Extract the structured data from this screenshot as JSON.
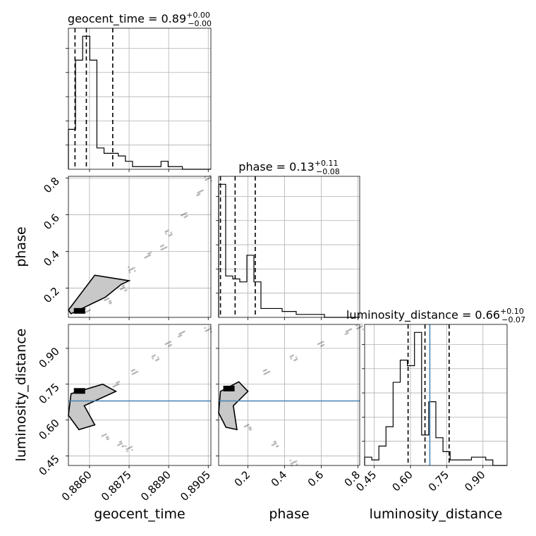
{
  "chart_data": {
    "type": "corner",
    "parameters": [
      "geocent_time",
      "phase",
      "luminosity_distance"
    ],
    "truth": {
      "luminosity_distance": 0.68
    },
    "axes": {
      "geocent_time": {
        "range": [
          0.8852,
          0.8906
        ],
        "ticks": [
          0.886,
          0.8875,
          0.889,
          0.8905
        ],
        "tick_labels": [
          "0.8860",
          "0.8875",
          "0.8890",
          "0.8905"
        ]
      },
      "phase": {
        "range": [
          0.04,
          0.81
        ],
        "ticks": [
          0.2,
          0.4,
          0.6,
          0.8
        ],
        "tick_labels": [
          "0.2",
          "0.4",
          "0.6",
          "0.8"
        ]
      },
      "luminosity_distance": {
        "range": [
          0.41,
          1.0
        ],
        "ticks": [
          0.45,
          0.6,
          0.75,
          0.9
        ],
        "tick_labels": [
          "0.45",
          "0.60",
          "0.75",
          "0.90"
        ]
      }
    },
    "titles": [
      {
        "param": "geocent_time",
        "label": "geocent_time",
        "median": "0.89",
        "upper": "+0.00",
        "lower": "−0.00",
        "quantiles": [
          0.88545,
          0.88588,
          0.88688
        ]
      },
      {
        "param": "phase",
        "label": "phase",
        "median": "0.13",
        "upper": "+0.11",
        "lower": "−0.08",
        "quantiles": [
          0.05,
          0.13,
          0.24
        ]
      },
      {
        "param": "luminosity_distance",
        "label": "luminosity_distance",
        "median": "0.66",
        "upper": "+0.10",
        "lower": "−0.07",
        "quantiles": [
          0.59,
          0.66,
          0.76
        ]
      }
    ],
    "histograms": {
      "geocent_time": {
        "edges_range": [
          0.8852,
          0.8906
        ],
        "bins": 20,
        "counts": [
          15,
          41,
          50,
          41,
          8,
          6,
          6,
          5,
          3,
          1,
          1,
          1,
          1,
          3,
          1,
          1,
          0,
          0,
          0,
          0
        ]
      },
      "phase": {
        "edges_range": [
          0.04,
          0.81
        ],
        "bins": 20,
        "counts": [
          45,
          14,
          13,
          12,
          21,
          12,
          3,
          3,
          3,
          2,
          2,
          1,
          1,
          1,
          1,
          0,
          0,
          0,
          0,
          0
        ]
      },
      "luminosity_distance": {
        "edges_range": [
          0.41,
          1.0
        ],
        "bins": 20,
        "counts": [
          3,
          2,
          7,
          14,
          30,
          38,
          36,
          48,
          11,
          23,
          10,
          5,
          2,
          2,
          2,
          3,
          3,
          2,
          0,
          0
        ]
      }
    },
    "scatter_paths": {
      "geocent_time__phase": [
        [
          0.8859,
          0.08
        ],
        [
          0.8867,
          0.13
        ],
        [
          0.8873,
          0.2
        ],
        [
          0.8876,
          0.3
        ],
        [
          0.8882,
          0.38
        ],
        [
          0.8888,
          0.42
        ],
        [
          0.889,
          0.5
        ],
        [
          0.8896,
          0.6
        ],
        [
          0.8902,
          0.72
        ],
        [
          0.8905,
          0.8
        ]
      ],
      "geocent_time__luminosity_distance": [
        [
          0.8857,
          0.58
        ],
        [
          0.8866,
          0.53
        ],
        [
          0.8872,
          0.5
        ],
        [
          0.8875,
          0.48
        ],
        [
          0.887,
          0.75
        ],
        [
          0.8877,
          0.8
        ],
        [
          0.8885,
          0.86
        ],
        [
          0.889,
          0.92
        ],
        [
          0.8895,
          0.96
        ],
        [
          0.8905,
          0.98
        ]
      ],
      "phase__luminosity_distance": [
        [
          0.08,
          0.62
        ],
        [
          0.2,
          0.57
        ],
        [
          0.35,
          0.5
        ],
        [
          0.45,
          0.42
        ],
        [
          0.15,
          0.73
        ],
        [
          0.3,
          0.8
        ],
        [
          0.45,
          0.86
        ],
        [
          0.6,
          0.92
        ],
        [
          0.75,
          0.97
        ],
        [
          0.81,
          0.99
        ]
      ]
    },
    "contours": {
      "geocent_time__phase": [
        [
          0.8853,
          0.06
        ],
        [
          0.8866,
          0.15
        ],
        [
          0.8872,
          0.22
        ],
        [
          0.8875,
          0.24
        ],
        [
          0.8862,
          0.27
        ],
        [
          0.8852,
          0.08
        ]
      ],
      "geocent_time__luminosity_distance": [
        [
          0.8853,
          0.71
        ],
        [
          0.8865,
          0.75
        ],
        [
          0.887,
          0.72
        ],
        [
          0.8858,
          0.66
        ],
        [
          0.8862,
          0.58
        ],
        [
          0.8856,
          0.56
        ],
        [
          0.8852,
          0.62
        ]
      ],
      "phase__luminosity_distance": [
        [
          0.05,
          0.72
        ],
        [
          0.15,
          0.76
        ],
        [
          0.2,
          0.72
        ],
        [
          0.12,
          0.66
        ],
        [
          0.14,
          0.56
        ],
        [
          0.08,
          0.57
        ],
        [
          0.04,
          0.63
        ]
      ]
    },
    "grid": true
  }
}
